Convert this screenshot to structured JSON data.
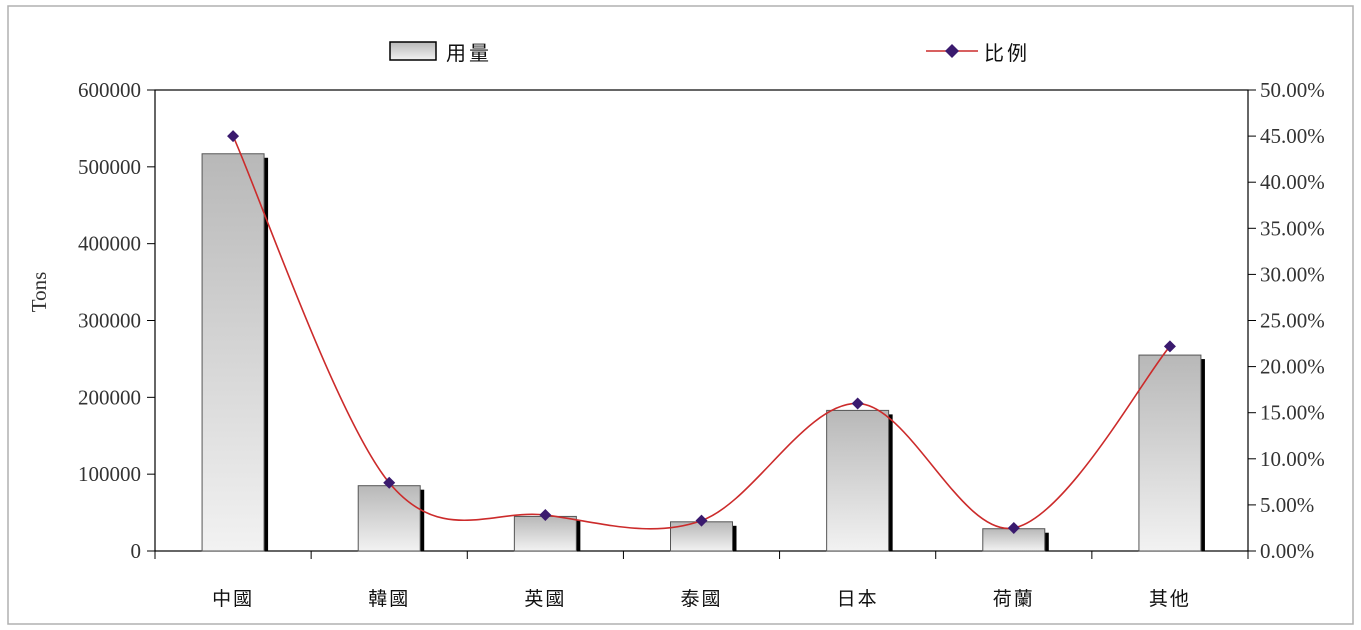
{
  "chart_data": {
    "type": "bar",
    "categories": [
      "中國",
      "韓國",
      "英國",
      "泰國",
      "日本",
      "荷蘭",
      "其他"
    ],
    "series": [
      {
        "name": "用量",
        "type": "bar",
        "axis": "left",
        "values": [
          517000,
          85000,
          45000,
          38000,
          183000,
          29000,
          255000
        ]
      },
      {
        "name": "比例",
        "type": "line",
        "axis": "right",
        "values": [
          0.45,
          0.074,
          0.039,
          0.033,
          0.16,
          0.025,
          0.222
        ]
      }
    ],
    "ylabel": "Tons",
    "ylim": [
      0,
      600000
    ],
    "y_ticks": [
      "0",
      "100000",
      "200000",
      "300000",
      "400000",
      "500000",
      "600000"
    ],
    "y2lim": [
      0,
      0.5
    ],
    "y2_ticks": [
      "0.00%",
      "5.00%",
      "10.00%",
      "15.00%",
      "20.00%",
      "25.00%",
      "30.00%",
      "35.00%",
      "40.00%",
      "45.00%",
      "50.00%"
    ],
    "legend_position": "top",
    "grid": false,
    "colors": {
      "bar_fill_top": "#b8b8b8",
      "bar_fill_bottom": "#f2f2f2",
      "bar_shadow": "#000000",
      "line": "#cc2b2b",
      "marker": "#3a1a6e"
    }
  }
}
